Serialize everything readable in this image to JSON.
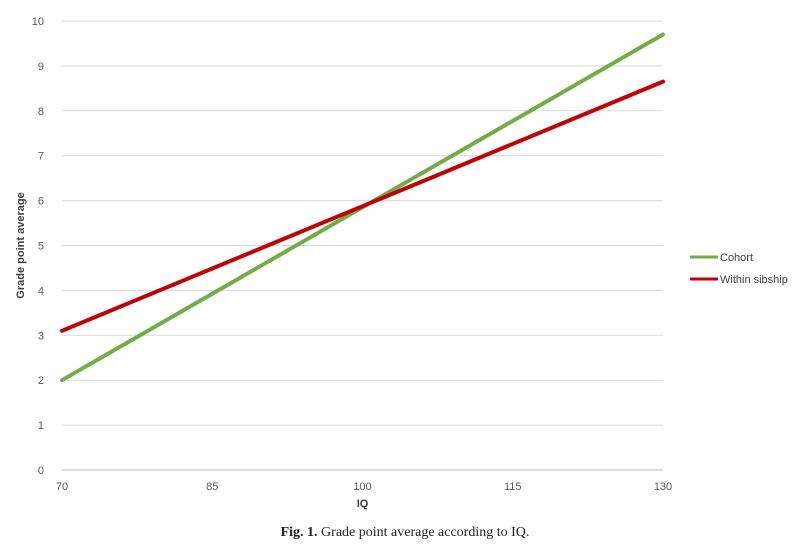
{
  "chart_data": {
    "type": "line",
    "title": "",
    "xlabel": "IQ",
    "ylabel": "Grade point average",
    "xlim": [
      70,
      130
    ],
    "ylim": [
      0,
      10
    ],
    "x_ticks": [
      70,
      85,
      100,
      115,
      130
    ],
    "y_ticks": [
      0,
      1,
      2,
      3,
      4,
      5,
      6,
      7,
      8,
      9,
      10
    ],
    "grid": "horizontal",
    "legend_position": "right",
    "x": [
      70,
      130
    ],
    "series": [
      {
        "name": "Cohort",
        "values": [
          2.0,
          9.7
        ],
        "color": "#70ad47"
      },
      {
        "name": "Within sibship",
        "values": [
          3.1,
          8.65
        ],
        "color": "#c00000"
      }
    ]
  },
  "caption": {
    "label": "Fig. 1.",
    "text": "Grade point average according to IQ."
  }
}
